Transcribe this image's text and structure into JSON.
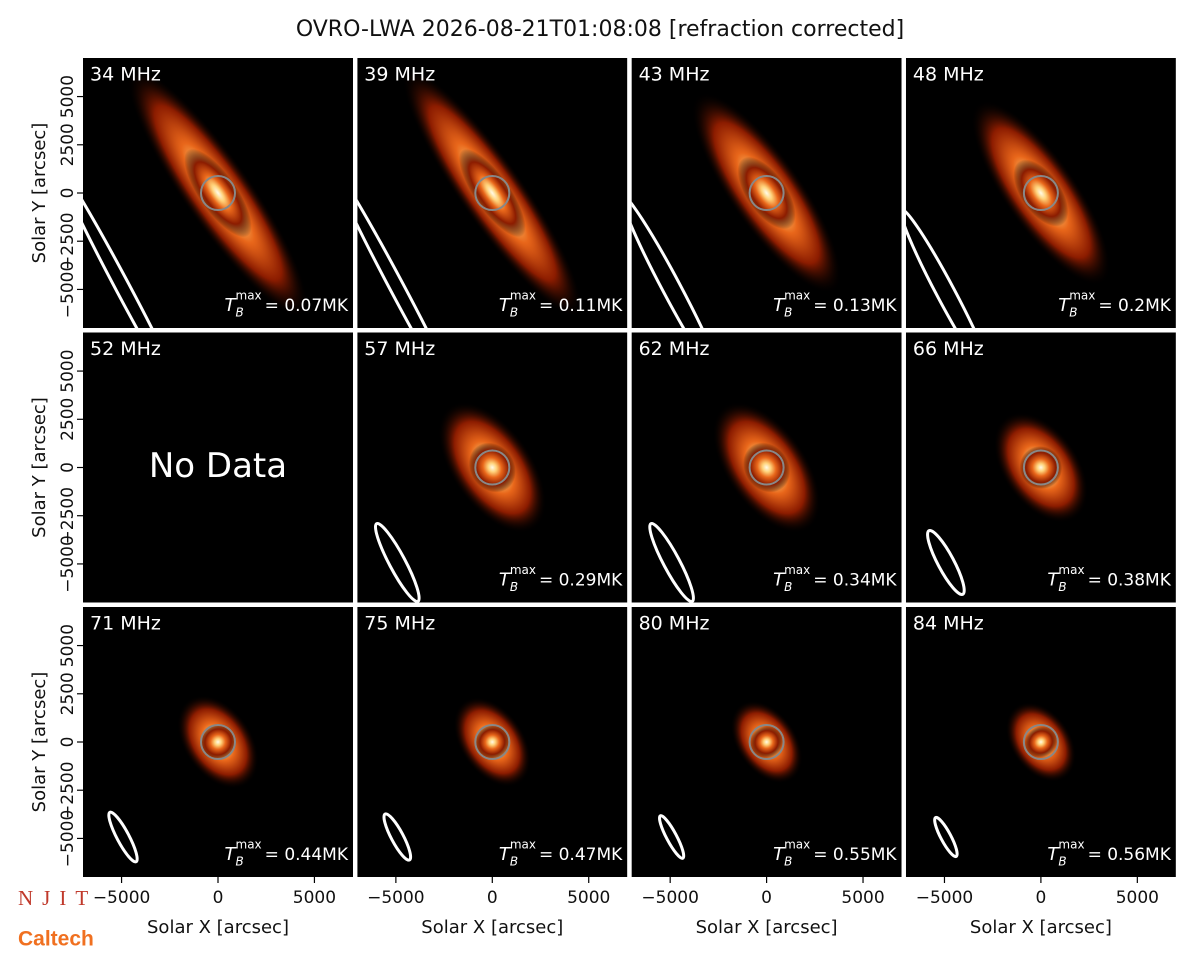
{
  "chart_data": {
    "type": "image-grid",
    "title": "OVRO-LWA 2026-08-21T01:08:08 [refraction corrected]",
    "xlabel": "Solar X [arcsec]",
    "ylabel": "Solar Y [arcsec]",
    "xlim": [
      -7000,
      7000
    ],
    "ylim": [
      -7000,
      7000
    ],
    "xticks": [
      {
        "value": -5000,
        "label": "−5000"
      },
      0,
      5000
    ],
    "yticks": [
      {
        "value": -5000,
        "label": "−5000"
      },
      {
        "value": -2500,
        "label": "−2500"
      },
      0,
      2500,
      5000
    ],
    "tmax_symbol": "T",
    "tmax_sub": "B",
    "tmax_sup": "max",
    "panels": [
      {
        "label": "34 MHz",
        "tmax_label": "= 0.07MK"
      },
      {
        "label": "39 MHz",
        "tmax_label": "= 0.11MK"
      },
      {
        "label": "43 MHz",
        "tmax_label": "= 0.13MK"
      },
      {
        "label": "48 MHz",
        "tmax_label": "= 0.2MK"
      },
      {
        "label": "52 MHz",
        "note": "No Data"
      },
      {
        "label": "57 MHz",
        "tmax_label": "= 0.29MK"
      },
      {
        "label": "62 MHz",
        "tmax_label": "= 0.34MK"
      },
      {
        "label": "66 MHz",
        "tmax_label": "= 0.38MK"
      },
      {
        "label": "71 MHz",
        "tmax_label": "= 0.44MK"
      },
      {
        "label": "75 MHz",
        "tmax_label": "= 0.47MK"
      },
      {
        "label": "80 MHz",
        "tmax_label": "= 0.55MK"
      },
      {
        "label": "84 MHz",
        "tmax_label": "= 0.56MK"
      }
    ],
    "logos": [
      "NJIT",
      "Caltech"
    ]
  }
}
